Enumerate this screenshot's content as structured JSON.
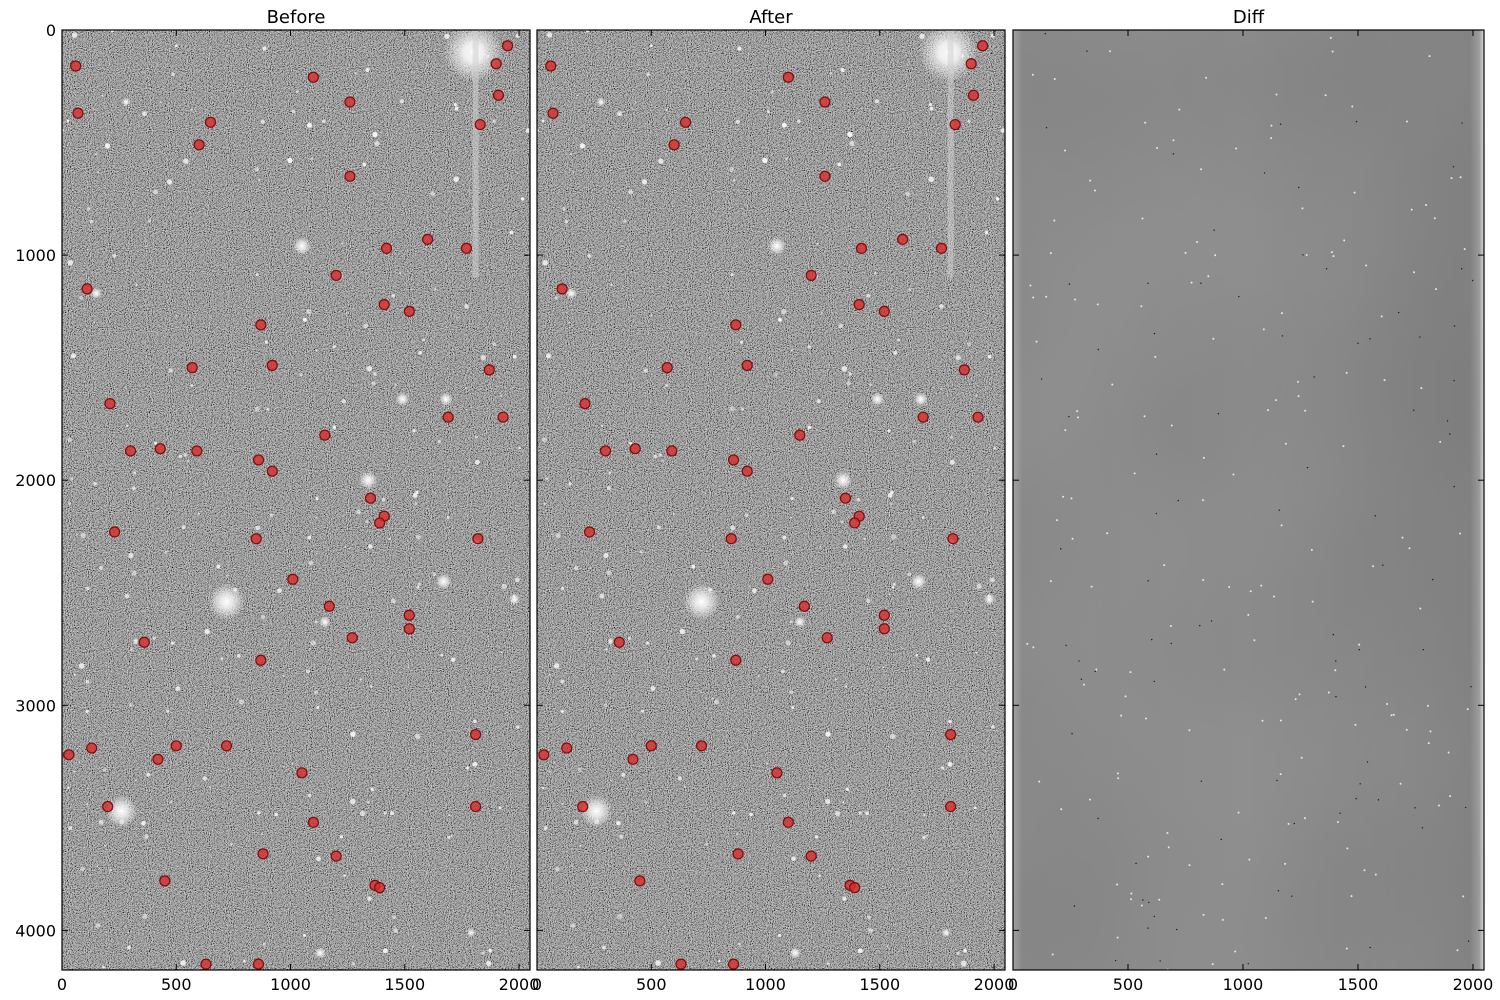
{
  "panels": [
    {
      "id": "before",
      "title": "Before",
      "type": "image",
      "show_yticks": true
    },
    {
      "id": "after",
      "title": "After",
      "type": "image",
      "show_yticks": false
    },
    {
      "id": "diff",
      "title": "Diff",
      "type": "diff",
      "show_yticks": false
    }
  ],
  "axes": {
    "x_range": [
      0,
      2048
    ],
    "y_range": [
      0,
      4176
    ],
    "y_inverted": true,
    "x_ticks": [
      0,
      500,
      1000,
      1500,
      2000
    ],
    "y_ticks": [
      0,
      1000,
      2000,
      3000,
      4000
    ]
  },
  "colors": {
    "marker_fill": "#d92b2b",
    "marker_edge": "#7a0d0d",
    "background_noise": "#4a4a4a",
    "diff_background": "#6a6a6a"
  },
  "detections": [
    [
      60,
      160
    ],
    [
      1950,
      70
    ],
    [
      1900,
      150
    ],
    [
      1910,
      290
    ],
    [
      1830,
      420
    ],
    [
      70,
      370
    ],
    [
      1100,
      210
    ],
    [
      1260,
      320
    ],
    [
      650,
      410
    ],
    [
      600,
      510
    ],
    [
      1260,
      650
    ],
    [
      1420,
      970
    ],
    [
      1600,
      930
    ],
    [
      1770,
      970
    ],
    [
      1200,
      1090
    ],
    [
      110,
      1150
    ],
    [
      1410,
      1220
    ],
    [
      1520,
      1250
    ],
    [
      870,
      1310
    ],
    [
      570,
      1500
    ],
    [
      920,
      1490
    ],
    [
      1870,
      1510
    ],
    [
      210,
      1660
    ],
    [
      1690,
      1720
    ],
    [
      1930,
      1720
    ],
    [
      1150,
      1800
    ],
    [
      300,
      1870
    ],
    [
      430,
      1860
    ],
    [
      590,
      1870
    ],
    [
      860,
      1910
    ],
    [
      920,
      1960
    ],
    [
      1350,
      2080
    ],
    [
      1410,
      2160
    ],
    [
      1390,
      2190
    ],
    [
      230,
      2230
    ],
    [
      850,
      2260
    ],
    [
      1820,
      2260
    ],
    [
      1010,
      2440
    ],
    [
      1170,
      2560
    ],
    [
      1520,
      2600
    ],
    [
      1520,
      2660
    ],
    [
      360,
      2720
    ],
    [
      1270,
      2700
    ],
    [
      870,
      2800
    ],
    [
      1810,
      3130
    ],
    [
      30,
      3220
    ],
    [
      130,
      3190
    ],
    [
      500,
      3180
    ],
    [
      720,
      3180
    ],
    [
      420,
      3240
    ],
    [
      1050,
      3300
    ],
    [
      200,
      3450
    ],
    [
      1810,
      3450
    ],
    [
      1100,
      3520
    ],
    [
      880,
      3660
    ],
    [
      1200,
      3670
    ],
    [
      450,
      3780
    ],
    [
      1370,
      3800
    ],
    [
      1390,
      3810
    ],
    [
      630,
      4150
    ],
    [
      860,
      4150
    ]
  ],
  "bright_sources": [
    [
      1800,
      100,
      130
    ],
    [
      1800,
      100,
      60
    ],
    [
      720,
      2540,
      80
    ],
    [
      260,
      3470,
      70
    ],
    [
      1050,
      960,
      40
    ],
    [
      1340,
      2000,
      40
    ],
    [
      1670,
      2450,
      35
    ],
    [
      1490,
      1640,
      30
    ],
    [
      1680,
      1640,
      30
    ],
    [
      150,
      1170,
      25
    ],
    [
      1150,
      2630,
      25
    ],
    [
      1980,
      2530,
      25
    ],
    [
      1130,
      4100,
      25
    ],
    [
      280,
      320,
      20
    ],
    [
      1790,
      4010,
      20
    ]
  ]
}
